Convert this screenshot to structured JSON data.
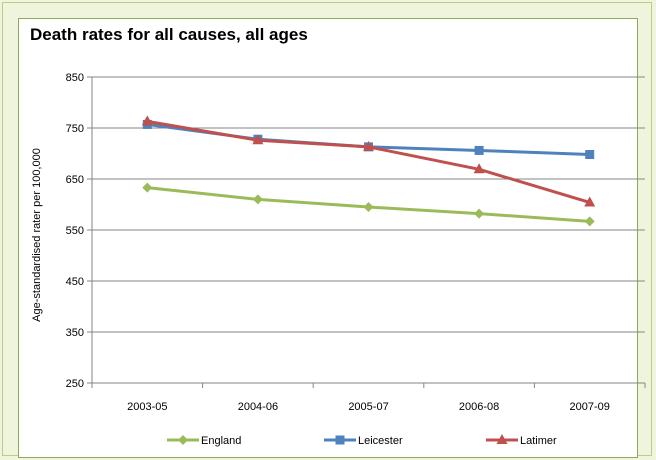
{
  "chart_data": {
    "type": "line",
    "title": "Death rates for all causes, all ages",
    "xlabel": "",
    "ylabel": "Age-standardised rater per 100,000",
    "categories": [
      "2003-05",
      "2004-06",
      "2005-07",
      "2006-08",
      "2007-09"
    ],
    "ylim": [
      250,
      850
    ],
    "yticks": [
      250,
      350,
      450,
      550,
      650,
      750,
      850
    ],
    "grid": true,
    "legend": "bottom",
    "series": [
      {
        "name": "England",
        "color": "#9bbb59",
        "marker": "diamond",
        "values": [
          633,
          610,
          595,
          582,
          567
        ]
      },
      {
        "name": "Leicester",
        "color": "#4f81bd",
        "marker": "square",
        "values": [
          757,
          728,
          713,
          706,
          698
        ]
      },
      {
        "name": "Latimer",
        "color": "#c0504d",
        "marker": "triangle",
        "values": [
          763,
          726,
          713,
          669,
          604
        ]
      }
    ]
  }
}
